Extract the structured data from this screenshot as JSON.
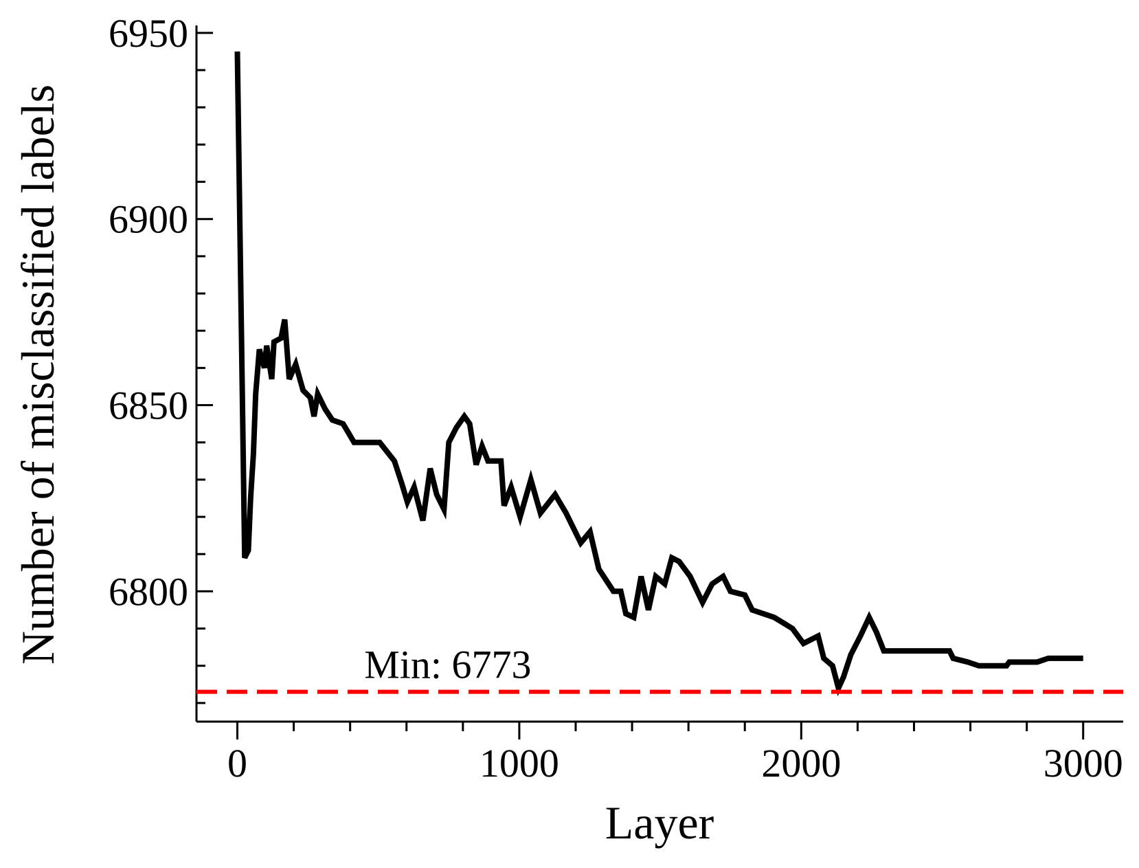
{
  "chart_data": {
    "type": "line",
    "x_label": "Layer",
    "y_label": "Number of misclassified labels",
    "xlim": [
      -145,
      3142
    ],
    "ylim": [
      6765,
      6952
    ],
    "xticks": [
      0,
      1000,
      2000,
      3000
    ],
    "yticks": [
      6800,
      6850,
      6900,
      6950
    ],
    "xminorticks": [
      200,
      400,
      600,
      800,
      1200,
      1400,
      1600,
      1800,
      2200,
      2400,
      2600,
      2800
    ],
    "yminorticks": [
      6770,
      6780,
      6790,
      6810,
      6820,
      6830,
      6840,
      6860,
      6870,
      6880,
      6890,
      6910,
      6920,
      6930,
      6940
    ],
    "series": [
      {
        "color": "#000000",
        "x": [
          0,
          26,
          39,
          47,
          57,
          65,
          78,
          96,
          104,
          122,
          130,
          155,
          168,
          184,
          207,
          233,
          259,
          272,
          285,
          311,
          337,
          375,
          414,
          505,
          557,
          583,
          603,
          627,
          658,
          684,
          707,
          733,
          750,
          777,
          805,
          824,
          847,
          868,
          889,
          935,
          946,
          971,
          1003,
          1041,
          1075,
          1127,
          1166,
          1218,
          1251,
          1282,
          1334,
          1360,
          1378,
          1406,
          1432,
          1458,
          1484,
          1516,
          1541,
          1567,
          1606,
          1650,
          1684,
          1723,
          1749,
          1800,
          1826,
          1904,
          1969,
          2008,
          2060,
          2080,
          2111,
          2132,
          2150,
          2176,
          2210,
          2241,
          2267,
          2293,
          2345,
          2370,
          2526,
          2539,
          2591,
          2630,
          2728,
          2738,
          2837,
          2876,
          3000
        ],
        "values": [
          6945,
          6809,
          6811,
          6825,
          6837,
          6853,
          6865,
          6860,
          6866,
          6857,
          6867,
          6868,
          6873,
          6857,
          6861,
          6854,
          6852,
          6847,
          6853,
          6849,
          6846,
          6845,
          6840,
          6840,
          6835,
          6829,
          6824,
          6828,
          6819,
          6833,
          6826,
          6822,
          6840,
          6844,
          6847,
          6845,
          6834,
          6839,
          6835,
          6835,
          6823,
          6828,
          6820,
          6830,
          6821,
          6826,
          6821,
          6813,
          6816,
          6806,
          6800,
          6800,
          6794,
          6793,
          6804,
          6795,
          6804,
          6802,
          6809,
          6808,
          6804,
          6797,
          6802,
          6804,
          6800,
          6799,
          6795,
          6793,
          6790,
          6786,
          6788,
          6782,
          6780,
          6774,
          6777,
          6783,
          6788,
          6793,
          6789,
          6784,
          6784,
          6784,
          6784,
          6782,
          6781,
          6780,
          6780,
          6781,
          6781,
          6782,
          6782
        ]
      }
    ],
    "reference_line": {
      "value": 6773,
      "label": "Min: 6773",
      "color": "#ff0000"
    }
  }
}
